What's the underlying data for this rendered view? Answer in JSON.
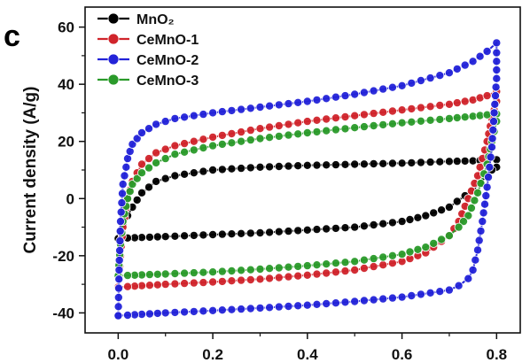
{
  "panel_label": "c",
  "chart_data": {
    "type": "line",
    "title": "",
    "xlabel": "",
    "ylabel": "Current density (A/g)",
    "xlim": [
      -0.07,
      0.85
    ],
    "ylim": [
      -47,
      67
    ],
    "xticks": [
      0.0,
      0.2,
      0.4,
      0.6,
      0.8
    ],
    "xtick_labels": [
      "0.0",
      "0.2",
      "0.4",
      "0.6",
      "0.8"
    ],
    "yticks": [
      -40,
      -20,
      0,
      20,
      40,
      60
    ],
    "ytick_labels": [
      "-40",
      "-20",
      "0",
      "20",
      "40",
      "60"
    ],
    "legend_position": "top-left",
    "grid": false,
    "marker": "circle",
    "series": [
      {
        "name": "MnO₂",
        "color": "#000000",
        "x": [
          0.0,
          0.01,
          0.03,
          0.05,
          0.08,
          0.12,
          0.2,
          0.3,
          0.4,
          0.5,
          0.6,
          0.7,
          0.75,
          0.78,
          0.8,
          0.8,
          0.79,
          0.78,
          0.75,
          0.7,
          0.65,
          0.6,
          0.5,
          0.4,
          0.3,
          0.2,
          0.1,
          0.05,
          0.02,
          0.0
        ],
        "y": [
          -14,
          -9,
          -3,
          2,
          6,
          8,
          10,
          11,
          11.6,
          12,
          12.4,
          13,
          13.2,
          13.5,
          13.6,
          11,
          10,
          8,
          3,
          -3,
          -6,
          -8,
          -10,
          -11,
          -12,
          -12.6,
          -13.3,
          -13.6,
          -13.8,
          -14
        ]
      },
      {
        "name": "CeMnO-1",
        "color": "#d0242b",
        "x": [
          0.0,
          0.005,
          0.01,
          0.02,
          0.03,
          0.05,
          0.08,
          0.12,
          0.2,
          0.3,
          0.4,
          0.5,
          0.6,
          0.7,
          0.75,
          0.78,
          0.8,
          0.8,
          0.79,
          0.78,
          0.76,
          0.74,
          0.72,
          0.7,
          0.65,
          0.6,
          0.5,
          0.4,
          0.3,
          0.2,
          0.1,
          0.05,
          0.02,
          0.0
        ],
        "y": [
          -31,
          -20,
          -10,
          0,
          6,
          12,
          16,
          18.5,
          21.5,
          24.5,
          27,
          29,
          31,
          33,
          34.5,
          36,
          37.5,
          34,
          28,
          20,
          8,
          0,
          -8,
          -13,
          -19,
          -22,
          -25,
          -26.8,
          -28.2,
          -29.2,
          -30,
          -30.5,
          -30.8,
          -31
        ]
      },
      {
        "name": "CeMnO-2",
        "color": "#2323d8",
        "x": [
          0.0,
          0.002,
          0.005,
          0.01,
          0.02,
          0.03,
          0.05,
          0.08,
          0.12,
          0.2,
          0.3,
          0.4,
          0.5,
          0.6,
          0.7,
          0.75,
          0.78,
          0.8,
          0.8,
          0.8,
          0.795,
          0.79,
          0.78,
          0.77,
          0.76,
          0.75,
          0.74,
          0.72,
          0.7,
          0.6,
          0.5,
          0.4,
          0.3,
          0.2,
          0.1,
          0.05,
          0.02,
          0.0
        ],
        "y": [
          -41,
          -25,
          -8,
          5,
          14,
          19,
          23,
          26,
          28,
          30,
          32,
          34,
          36.5,
          39.5,
          44,
          48,
          51.5,
          54.5,
          51,
          42,
          30,
          18,
          4,
          -8,
          -18,
          -25,
          -28,
          -30.5,
          -32,
          -34.5,
          -36,
          -37.3,
          -38.3,
          -39.2,
          -40,
          -40.5,
          -40.8,
          -41
        ]
      },
      {
        "name": "CeMnO-3",
        "color": "#2a9a2a",
        "x": [
          0.0,
          0.005,
          0.01,
          0.02,
          0.03,
          0.05,
          0.08,
          0.12,
          0.2,
          0.3,
          0.4,
          0.5,
          0.6,
          0.7,
          0.75,
          0.78,
          0.8,
          0.8,
          0.79,
          0.78,
          0.76,
          0.74,
          0.72,
          0.7,
          0.65,
          0.6,
          0.5,
          0.4,
          0.3,
          0.2,
          0.1,
          0.05,
          0.02,
          0.0
        ],
        "y": [
          -27,
          -16,
          -8,
          0,
          5,
          9,
          12.5,
          15.5,
          18.5,
          21,
          23,
          24.8,
          26.5,
          28,
          28.8,
          29.3,
          29.6,
          27,
          20,
          12,
          2,
          -6,
          -10,
          -13,
          -17,
          -19.5,
          -22,
          -23.5,
          -24.7,
          -25.7,
          -26.4,
          -26.7,
          -26.9,
          -27
        ]
      }
    ]
  }
}
